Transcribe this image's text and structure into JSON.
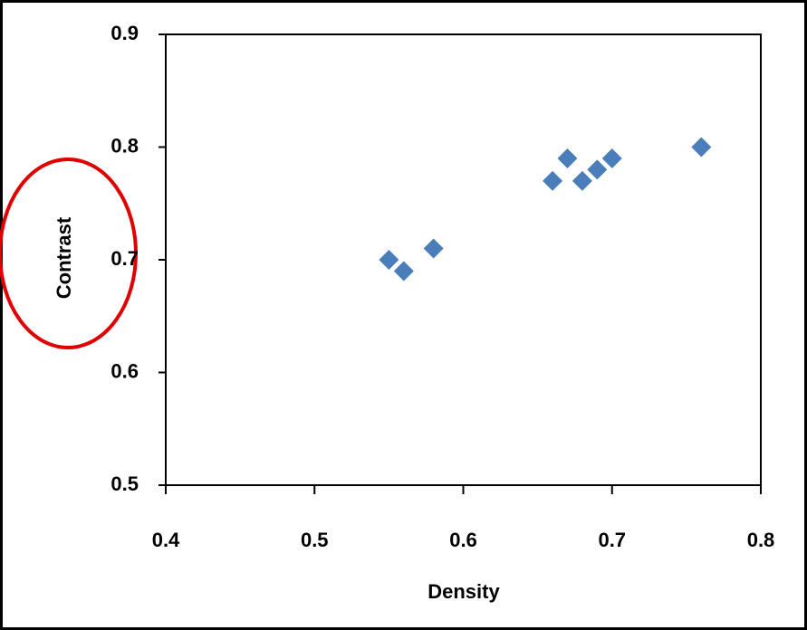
{
  "chart_data": {
    "type": "scatter",
    "x_label": "Density",
    "y_label": "Contrast",
    "x": [
      0.55,
      0.56,
      0.58,
      0.66,
      0.67,
      0.68,
      0.69,
      0.7,
      0.76
    ],
    "values": [
      0.7,
      0.69,
      0.71,
      0.77,
      0.79,
      0.77,
      0.78,
      0.79,
      0.8
    ],
    "color": "#4a7ebb",
    "xlim": [
      0.4,
      0.8
    ],
    "xticks": [
      0.4,
      0.5,
      0.6,
      0.7,
      0.8
    ],
    "ylim": [
      0.5,
      0.9
    ],
    "yticks": [
      0.5,
      0.6,
      0.7,
      0.8,
      0.9
    ],
    "grid": false
  }
}
